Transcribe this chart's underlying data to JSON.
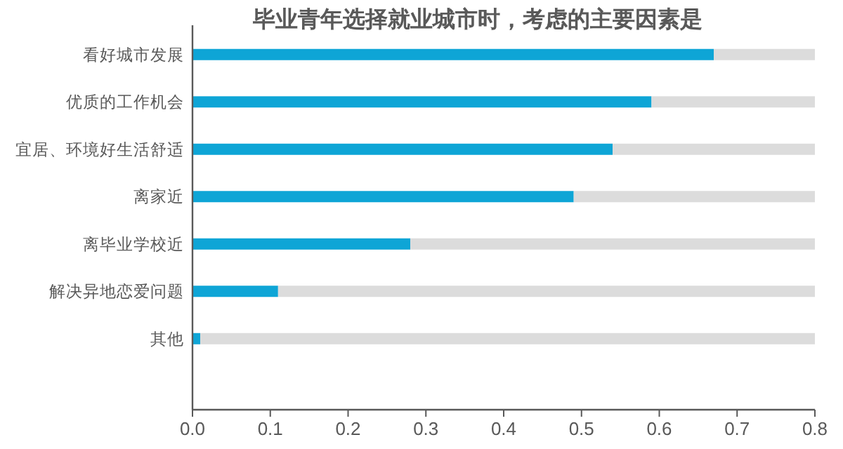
{
  "chart_data": {
    "type": "bar",
    "orientation": "horizontal",
    "title": "毕业青年选择就业城市时，考虑的主要因素是",
    "categories": [
      "看好城市发展",
      "优质的工作机会",
      "宜居、环境好生活舒适",
      "离家近",
      "离毕业学校近",
      "解决异地恋爱问题",
      "其他",
      null
    ],
    "series": [
      {
        "color": "#0ea5d6",
        "values": [
          0.67,
          0.59,
          0.54,
          0.49,
          0.28,
          0.11,
          0.01,
          null
        ]
      },
      {
        "color": "#dcdcdc",
        "values": [
          0.13,
          0.21,
          0.26,
          0.31,
          0.52,
          0.69,
          0.79,
          null
        ]
      }
    ],
    "stacked": true,
    "xlim": [
      0,
      0.8
    ],
    "xticks": [
      {
        "value": 0,
        "label": "0.0"
      },
      0.1,
      0.2,
      0.3,
      0.4,
      0.5,
      0.6,
      0.7,
      0.8
    ],
    "grid": false
  }
}
